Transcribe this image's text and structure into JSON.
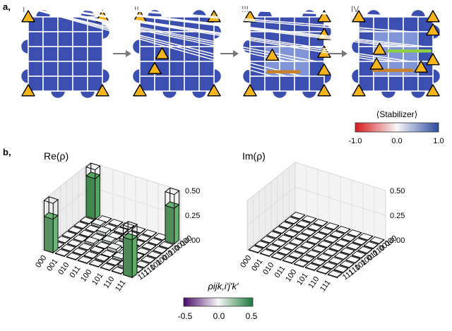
{
  "panel_a": {
    "label": "a,",
    "stages": [
      "I",
      "II",
      "III",
      "IV"
    ],
    "colorbar": {
      "title": "⟨Stabilizer⟩",
      "ticks": [
        "-1.0",
        "0.0",
        "1.0"
      ],
      "colors": [
        "#d7191c",
        "#f7f7f7",
        "#2c4ba0"
      ]
    },
    "colors": {
      "plaquette": "#3a4fb0",
      "plaquette_light": "#7f95d8",
      "triangle": "#f4b41a",
      "string_orange": "#c9812a",
      "string_green": "#8fcf45"
    }
  },
  "panel_b": {
    "label": "b,",
    "basis": [
      "000",
      "001",
      "010",
      "011",
      "100",
      "101",
      "110",
      "111"
    ],
    "z_ticks": [
      "0.50",
      "0.25",
      "0.00"
    ],
    "colorbar": {
      "title": "ρijk,i'j'k'",
      "ticks": [
        "-0.5",
        "0.0",
        "0.5"
      ],
      "colors": [
        "#4b0a6b",
        "#f7f7f7",
        "#1b7a3a"
      ]
    }
  },
  "chart_data": [
    {
      "type": "bar3d",
      "title": "Re(ρ)",
      "x": [
        "000",
        "001",
        "010",
        "011",
        "100",
        "101",
        "110",
        "111"
      ],
      "y": [
        "000",
        "001",
        "010",
        "011",
        "100",
        "101",
        "110",
        "111"
      ],
      "zlim": [
        0,
        0.5
      ],
      "ideal": [
        [
          0.5,
          0,
          0,
          0,
          0,
          0,
          0,
          0.5
        ],
        [
          0,
          0,
          0,
          0,
          0,
          0,
          0,
          0
        ],
        [
          0,
          0,
          0,
          0,
          0,
          0,
          0,
          0
        ],
        [
          0,
          0,
          0,
          0,
          0,
          0,
          0,
          0
        ],
        [
          0,
          0,
          0,
          0,
          0,
          0,
          0,
          0
        ],
        [
          0,
          0,
          0,
          0,
          0,
          0,
          0,
          0
        ],
        [
          0,
          0,
          0,
          0,
          0,
          0,
          0,
          0
        ],
        [
          0.5,
          0,
          0,
          0,
          0,
          0,
          0,
          0.5
        ]
      ],
      "values": [
        [
          0.41,
          0,
          0,
          0,
          0,
          0,
          0,
          0.36
        ],
        [
          0,
          0.02,
          0,
          0.01,
          0,
          0,
          0,
          0
        ],
        [
          0,
          0,
          0.03,
          0,
          0.02,
          0,
          0,
          0
        ],
        [
          0,
          0,
          0,
          0.02,
          0,
          0.02,
          0,
          0
        ],
        [
          0,
          0,
          0.02,
          0,
          0.03,
          0,
          0.01,
          0
        ],
        [
          0,
          0,
          0,
          0.01,
          0,
          0.02,
          0,
          0
        ],
        [
          0,
          0,
          0,
          0,
          0.01,
          0,
          0.02,
          0
        ],
        [
          0.34,
          0,
          0,
          0,
          0,
          0,
          0,
          0.38
        ]
      ]
    },
    {
      "type": "bar3d",
      "title": "Im(ρ)",
      "x": [
        "000",
        "001",
        "010",
        "011",
        "100",
        "101",
        "110",
        "111"
      ],
      "y": [
        "000",
        "001",
        "010",
        "011",
        "100",
        "101",
        "110",
        "111"
      ],
      "zlim": [
        0,
        0.5
      ],
      "values": [
        [
          0,
          0,
          0,
          0,
          0,
          0,
          0,
          0
        ],
        [
          0,
          0,
          0,
          0,
          0,
          0,
          0,
          0
        ],
        [
          0,
          0,
          0,
          0,
          0,
          0,
          0,
          0
        ],
        [
          0,
          0,
          0,
          0,
          0,
          0,
          0,
          0
        ],
        [
          0,
          0,
          0,
          0,
          0,
          0,
          0,
          0
        ],
        [
          0,
          0,
          0,
          0,
          0,
          0,
          0,
          0
        ],
        [
          0,
          0,
          0,
          0,
          0,
          0,
          0,
          0
        ],
        [
          0,
          0,
          0,
          0,
          0,
          0,
          0,
          0
        ]
      ]
    }
  ]
}
